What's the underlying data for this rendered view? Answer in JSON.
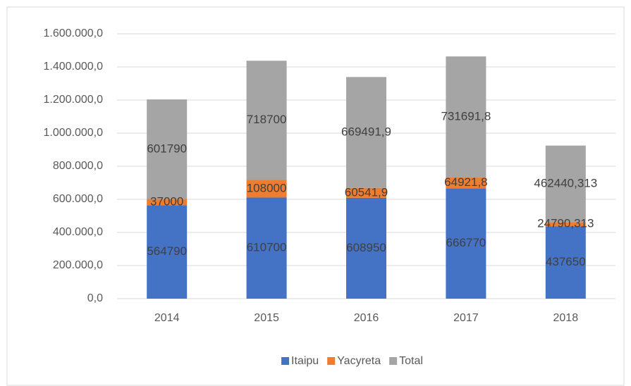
{
  "chart_data": {
    "type": "bar",
    "stacked": true,
    "categories": [
      "2014",
      "2015",
      "2016",
      "2017",
      "2018"
    ],
    "series": [
      {
        "name": "Itaipu",
        "color": "#4472c4",
        "values": [
          564790,
          610700,
          608950,
          666770,
          437650
        ]
      },
      {
        "name": "Yacyreta",
        "color": "#ed7d31",
        "values": [
          37000,
          108000,
          60541.9,
          64921.8,
          24790.313
        ],
        "value_labels": [
          "37000",
          "108000",
          "60541,9",
          "64921,8",
          "24790,313"
        ]
      },
      {
        "name": "Total",
        "color": "#a5a5a5",
        "values": [
          601790,
          718700,
          669491.9,
          731691.8,
          462440.313
        ],
        "value_labels": [
          "601790",
          "718700",
          "669491,9",
          "731691,8",
          "462440,313"
        ]
      }
    ],
    "ylim": [
      0,
      1600000
    ],
    "yticks": [
      {
        "value": 0,
        "label": "0,0"
      },
      {
        "value": 200000,
        "label": "200.000,0"
      },
      {
        "value": 400000,
        "label": "400.000,0"
      },
      {
        "value": 600000,
        "label": "600.000,0"
      },
      {
        "value": 800000,
        "label": "800.000,0"
      },
      {
        "value": 1000000,
        "label": "1.000.000,0"
      },
      {
        "value": 1200000,
        "label": "1.200.000,0"
      },
      {
        "value": 1400000,
        "label": "1.400.000,0"
      },
      {
        "value": 1600000,
        "label": "1.600.000,0"
      }
    ],
    "grid": true,
    "legend": "bottom"
  }
}
